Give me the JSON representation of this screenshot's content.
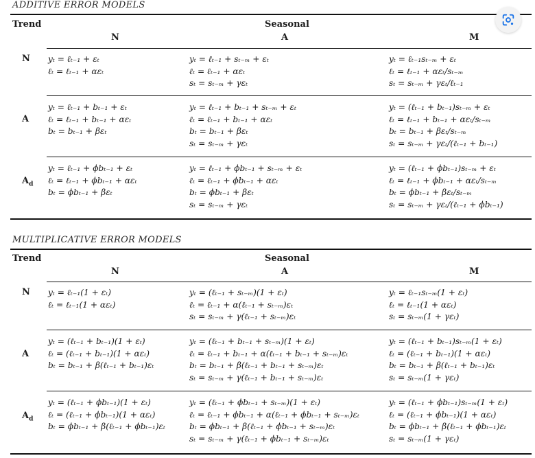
{
  "additive": {
    "title": "ADDITIVE ERROR MODELS",
    "trend_header": "Trend",
    "seasonal_header": "Seasonal",
    "col_headers": [
      "N",
      "A",
      "M"
    ],
    "rows": [
      {
        "label": "N",
        "cells": [
          [
            "yₜ = ℓₜ₋₁ + εₜ",
            "ℓₜ = ℓₜ₋₁ + αεₜ"
          ],
          [
            "yₜ = ℓₜ₋₁ + sₜ₋ₘ + εₜ",
            "ℓₜ = ℓₜ₋₁ + αεₜ",
            "sₜ = sₜ₋ₘ + γεₜ"
          ],
          [
            "yₜ = ℓₜ₋₁sₜ₋ₘ + εₜ",
            "ℓₜ = ℓₜ₋₁ + αεₜ/sₜ₋ₘ",
            "sₜ = sₜ₋ₘ + γεₜ/ℓₜ₋₁"
          ]
        ]
      },
      {
        "label": "A",
        "cells": [
          [
            "yₜ = ℓₜ₋₁ + bₜ₋₁ + εₜ",
            "ℓₜ = ℓₜ₋₁ + bₜ₋₁ + αεₜ",
            "bₜ = bₜ₋₁ + βεₜ"
          ],
          [
            "yₜ = ℓₜ₋₁ + bₜ₋₁ + sₜ₋ₘ + εₜ",
            "ℓₜ = ℓₜ₋₁ + bₜ₋₁ + αεₜ",
            "bₜ = bₜ₋₁ + βεₜ",
            "sₜ = sₜ₋ₘ + γεₜ"
          ],
          [
            "yₜ = (ℓₜ₋₁ + bₜ₋₁)sₜ₋ₘ + εₜ",
            "ℓₜ = ℓₜ₋₁ + bₜ₋₁ + αεₜ/sₜ₋ₘ",
            "bₜ = bₜ₋₁ + βεₜ/sₜ₋ₘ",
            "sₜ = sₜ₋ₘ + γεₜ/(ℓₜ₋₁ + bₜ₋₁)"
          ]
        ]
      },
      {
        "label": "A",
        "label_sub": "d",
        "cells": [
          [
            "yₜ = ℓₜ₋₁ + ϕbₜ₋₁ + εₜ",
            "ℓₜ = ℓₜ₋₁ + ϕbₜ₋₁ + αεₜ",
            "bₜ = ϕbₜ₋₁ + βεₜ"
          ],
          [
            "yₜ = ℓₜ₋₁ + ϕbₜ₋₁ + sₜ₋ₘ + εₜ",
            "ℓₜ = ℓₜ₋₁ + ϕbₜ₋₁ + αεₜ",
            "bₜ = ϕbₜ₋₁ + βεₜ",
            "sₜ = sₜ₋ₘ + γεₜ"
          ],
          [
            "yₜ = (ℓₜ₋₁ + ϕbₜ₋₁)sₜ₋ₘ + εₜ",
            "ℓₜ = ℓₜ₋₁ + ϕbₜ₋₁ + αεₜ/sₜ₋ₘ",
            "bₜ = ϕbₜ₋₁ + βεₜ/sₜ₋ₘ",
            "sₜ = sₜ₋ₘ + γεₜ/(ℓₜ₋₁ + ϕbₜ₋₁)"
          ]
        ]
      }
    ]
  },
  "multiplicative": {
    "title": "MULTIPLICATIVE ERROR MODELS",
    "trend_header": "Trend",
    "seasonal_header": "Seasonal",
    "col_headers": [
      "N",
      "A",
      "M"
    ],
    "rows": [
      {
        "label": "N",
        "cells": [
          [
            "yₜ = ℓₜ₋₁(1 + εₜ)",
            "ℓₜ = ℓₜ₋₁(1 + αεₜ)"
          ],
          [
            "yₜ = (ℓₜ₋₁ + sₜ₋ₘ)(1 + εₜ)",
            "ℓₜ = ℓₜ₋₁ + α(ℓₜ₋₁ + sₜ₋ₘ)εₜ",
            "sₜ = sₜ₋ₘ + γ(ℓₜ₋₁ + sₜ₋ₘ)εₜ"
          ],
          [
            "yₜ = ℓₜ₋₁sₜ₋ₘ(1 + εₜ)",
            "ℓₜ = ℓₜ₋₁(1 + αεₜ)",
            "sₜ = sₜ₋ₘ(1 + γεₜ)"
          ]
        ]
      },
      {
        "label": "A",
        "cells": [
          [
            "yₜ = (ℓₜ₋₁ + bₜ₋₁)(1 + εₜ)",
            "ℓₜ = (ℓₜ₋₁ + bₜ₋₁)(1 + αεₜ)",
            "bₜ = bₜ₋₁ + β(ℓₜ₋₁ + bₜ₋₁)εₜ"
          ],
          [
            "yₜ = (ℓₜ₋₁ + bₜ₋₁ + sₜ₋ₘ)(1 + εₜ)",
            "ℓₜ = ℓₜ₋₁ + bₜ₋₁ + α(ℓₜ₋₁ + bₜ₋₁ + sₜ₋ₘ)εₜ",
            "bₜ = bₜ₋₁ + β(ℓₜ₋₁ + bₜ₋₁ + sₜ₋ₘ)εₜ",
            "sₜ = sₜ₋ₘ + γ(ℓₜ₋₁ + bₜ₋₁ + sₜ₋ₘ)εₜ"
          ],
          [
            "yₜ = (ℓₜ₋₁ + bₜ₋₁)sₜ₋ₘ(1 + εₜ)",
            "ℓₜ = (ℓₜ₋₁ + bₜ₋₁)(1 + αεₜ)",
            "bₜ = bₜ₋₁ + β(ℓₜ₋₁ + bₜ₋₁)εₜ",
            "sₜ = sₜ₋ₘ(1 + γεₜ)"
          ]
        ]
      },
      {
        "label": "A",
        "label_sub": "d",
        "cells": [
          [
            "yₜ = (ℓₜ₋₁ + ϕbₜ₋₁)(1 + εₜ)",
            "ℓₜ = (ℓₜ₋₁ + ϕbₜ₋₁)(1 + αεₜ)",
            "bₜ = ϕbₜ₋₁ + β(ℓₜ₋₁ + ϕbₜ₋₁)εₜ"
          ],
          [
            "yₜ = (ℓₜ₋₁ + ϕbₜ₋₁ + sₜ₋ₘ)(1 + εₜ)",
            "ℓₜ = ℓₜ₋₁ + ϕbₜ₋₁ + α(ℓₜ₋₁ + ϕbₜ₋₁ + sₜ₋ₘ)εₜ",
            "bₜ = ϕbₜ₋₁ + β(ℓₜ₋₁ + ϕbₜ₋₁ + sₜ₋ₘ)εₜ",
            "sₜ = sₜ₋ₘ + γ(ℓₜ₋₁ + ϕbₜ₋₁ + sₜ₋ₘ)εₜ"
          ],
          [
            "yₜ = (ℓₜ₋₁ + ϕbₜ₋₁)sₜ₋ₘ(1 + εₜ)",
            "ℓₜ = (ℓₜ₋₁ + ϕbₜ₋₁)(1 + αεₜ)",
            "bₜ = ϕbₜ₋₁ + β(ℓₜ₋₁ + ϕbₜ₋₁)εₜ",
            "sₜ = sₜ₋ₘ(1 + γεₜ)"
          ]
        ]
      }
    ]
  },
  "overlay": {
    "icon": "lens-search-icon",
    "accent": "#1a73e8"
  }
}
